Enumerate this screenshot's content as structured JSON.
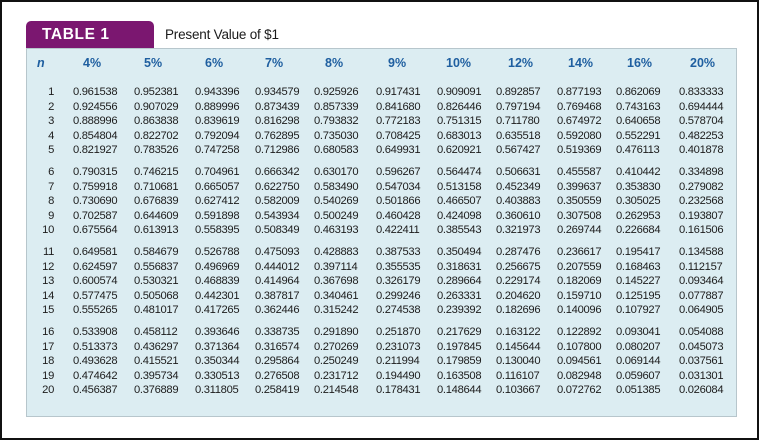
{
  "title": {
    "label": "TABLE 1",
    "text": "Present Value of $1"
  },
  "colors": {
    "tab": "#7b1770",
    "table_bg": "#dcedf2",
    "header_text": "#1f5fa0"
  },
  "table": {
    "n_header": "n",
    "columns": [
      "4%",
      "5%",
      "6%",
      "7%",
      "8%",
      "9%",
      "10%",
      "12%",
      "14%",
      "16%",
      "20%"
    ],
    "rows": [
      {
        "n": "1",
        "values": [
          "0.961538",
          "0.952381",
          "0.943396",
          "0.934579",
          "0.925926",
          "0.917431",
          "0.909091",
          "0.892857",
          "0.877193",
          "0.862069",
          "0.833333"
        ]
      },
      {
        "n": "2",
        "values": [
          "0.924556",
          "0.907029",
          "0.889996",
          "0.873439",
          "0.857339",
          "0.841680",
          "0.826446",
          "0.797194",
          "0.769468",
          "0.743163",
          "0.694444"
        ]
      },
      {
        "n": "3",
        "values": [
          "0.888996",
          "0.863838",
          "0.839619",
          "0.816298",
          "0.793832",
          "0.772183",
          "0.751315",
          "0.711780",
          "0.674972",
          "0.640658",
          "0.578704"
        ]
      },
      {
        "n": "4",
        "values": [
          "0.854804",
          "0.822702",
          "0.792094",
          "0.762895",
          "0.735030",
          "0.708425",
          "0.683013",
          "0.635518",
          "0.592080",
          "0.552291",
          "0.482253"
        ]
      },
      {
        "n": "5",
        "values": [
          "0.821927",
          "0.783526",
          "0.747258",
          "0.712986",
          "0.680583",
          "0.649931",
          "0.620921",
          "0.567427",
          "0.519369",
          "0.476113",
          "0.401878"
        ]
      },
      {
        "n": "6",
        "values": [
          "0.790315",
          "0.746215",
          "0.704961",
          "0.666342",
          "0.630170",
          "0.596267",
          "0.564474",
          "0.506631",
          "0.455587",
          "0.410442",
          "0.334898"
        ]
      },
      {
        "n": "7",
        "values": [
          "0.759918",
          "0.710681",
          "0.665057",
          "0.622750",
          "0.583490",
          "0.547034",
          "0.513158",
          "0.452349",
          "0.399637",
          "0.353830",
          "0.279082"
        ]
      },
      {
        "n": "8",
        "values": [
          "0.730690",
          "0.676839",
          "0.627412",
          "0.582009",
          "0.540269",
          "0.501866",
          "0.466507",
          "0.403883",
          "0.350559",
          "0.305025",
          "0.232568"
        ]
      },
      {
        "n": "9",
        "values": [
          "0.702587",
          "0.644609",
          "0.591898",
          "0.543934",
          "0.500249",
          "0.460428",
          "0.424098",
          "0.360610",
          "0.307508",
          "0.262953",
          "0.193807"
        ]
      },
      {
        "n": "10",
        "values": [
          "0.675564",
          "0.613913",
          "0.558395",
          "0.508349",
          "0.463193",
          "0.422411",
          "0.385543",
          "0.321973",
          "0.269744",
          "0.226684",
          "0.161506"
        ]
      },
      {
        "n": "11",
        "values": [
          "0.649581",
          "0.584679",
          "0.526788",
          "0.475093",
          "0.428883",
          "0.387533",
          "0.350494",
          "0.287476",
          "0.236617",
          "0.195417",
          "0.134588"
        ]
      },
      {
        "n": "12",
        "values": [
          "0.624597",
          "0.556837",
          "0.496969",
          "0.444012",
          "0.397114",
          "0.355535",
          "0.318631",
          "0.256675",
          "0.207559",
          "0.168463",
          "0.112157"
        ]
      },
      {
        "n": "13",
        "values": [
          "0.600574",
          "0.530321",
          "0.468839",
          "0.414964",
          "0.367698",
          "0.326179",
          "0.289664",
          "0.229174",
          "0.182069",
          "0.145227",
          "0.093464"
        ]
      },
      {
        "n": "14",
        "values": [
          "0.577475",
          "0.505068",
          "0.442301",
          "0.387817",
          "0.340461",
          "0.299246",
          "0.263331",
          "0.204620",
          "0.159710",
          "0.125195",
          "0.077887"
        ]
      },
      {
        "n": "15",
        "values": [
          "0.555265",
          "0.481017",
          "0.417265",
          "0.362446",
          "0.315242",
          "0.274538",
          "0.239392",
          "0.182696",
          "0.140096",
          "0.107927",
          "0.064905"
        ]
      },
      {
        "n": "16",
        "values": [
          "0.533908",
          "0.458112",
          "0.393646",
          "0.338735",
          "0.291890",
          "0.251870",
          "0.217629",
          "0.163122",
          "0.122892",
          "0.093041",
          "0.054088"
        ]
      },
      {
        "n": "17",
        "values": [
          "0.513373",
          "0.436297",
          "0.371364",
          "0.316574",
          "0.270269",
          "0.231073",
          "0.197845",
          "0.145644",
          "0.107800",
          "0.080207",
          "0.045073"
        ]
      },
      {
        "n": "18",
        "values": [
          "0.493628",
          "0.415521",
          "0.350344",
          "0.295864",
          "0.250249",
          "0.211994",
          "0.179859",
          "0.130040",
          "0.094561",
          "0.069144",
          "0.037561"
        ]
      },
      {
        "n": "19",
        "values": [
          "0.474642",
          "0.395734",
          "0.330513",
          "0.276508",
          "0.231712",
          "0.194490",
          "0.163508",
          "0.116107",
          "0.082948",
          "0.059607",
          "0.031301"
        ]
      },
      {
        "n": "20",
        "values": [
          "0.456387",
          "0.376889",
          "0.311805",
          "0.258419",
          "0.214548",
          "0.178431",
          "0.148644",
          "0.103667",
          "0.072762",
          "0.051385",
          "0.026084"
        ]
      }
    ]
  }
}
